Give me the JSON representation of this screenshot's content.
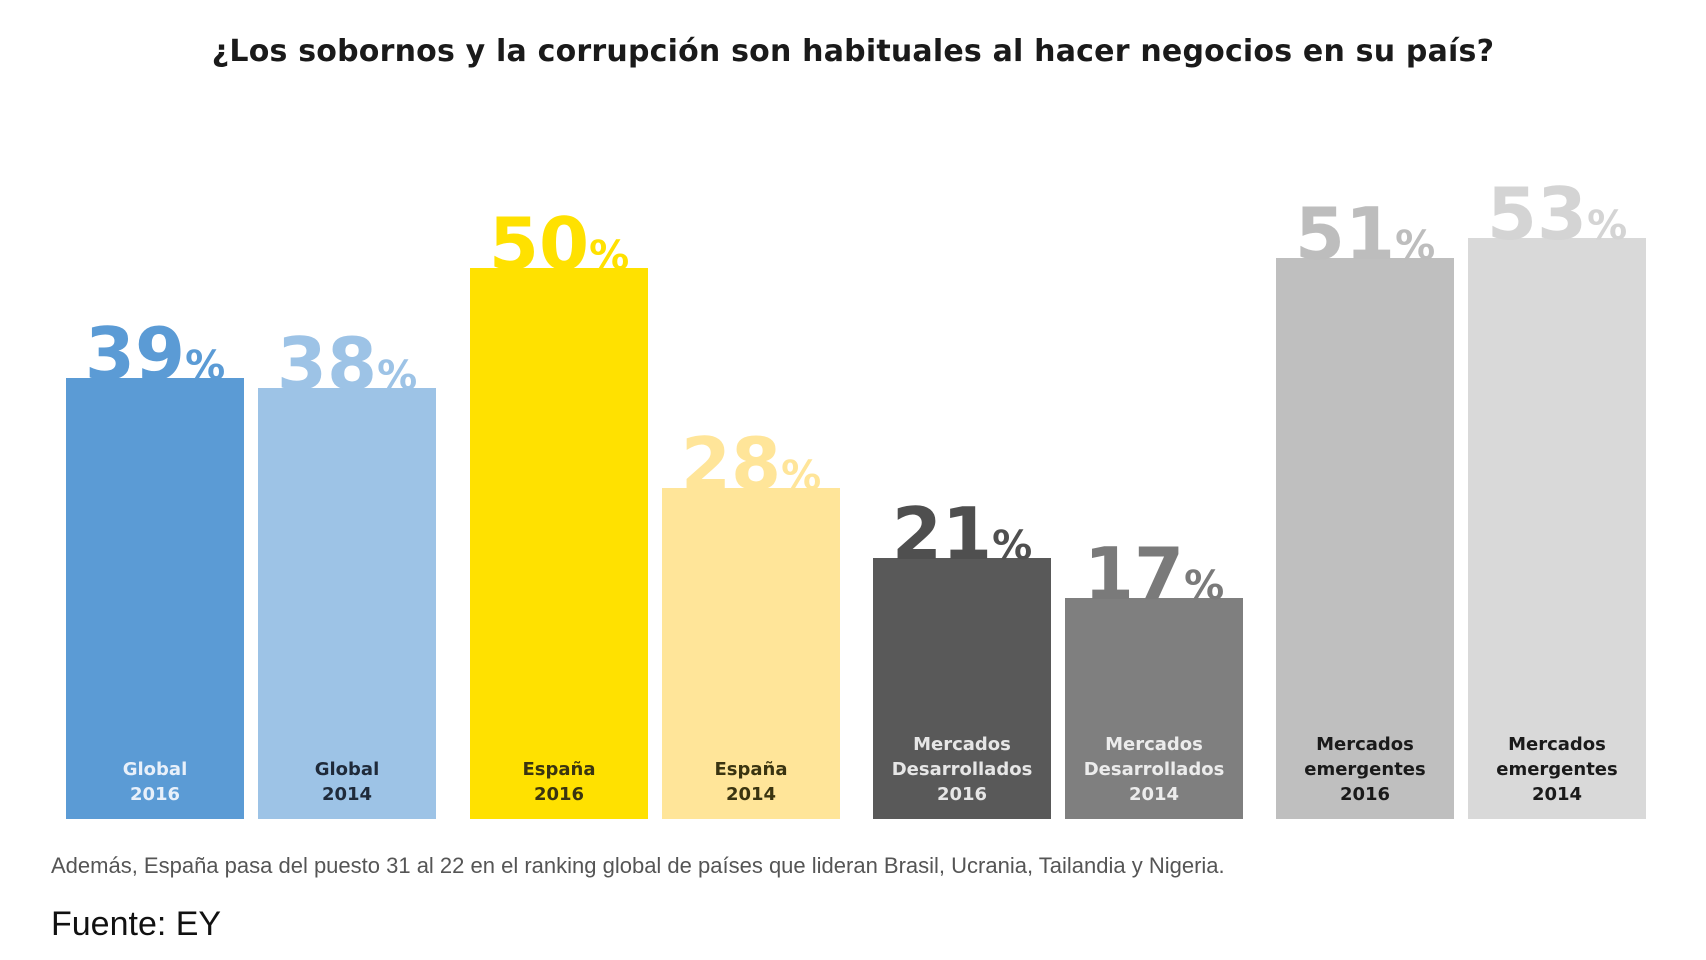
{
  "chart_data": {
    "type": "bar",
    "title": "¿Los sobornos y la corrupción son habituales al hacer negocios en su país?",
    "xlabel": "",
    "ylabel": "",
    "ylim": [
      0,
      100
    ],
    "grid": false,
    "legend": "none",
    "value_suffix": "%",
    "categories": [
      {
        "line1": "Global",
        "line2": "",
        "year": "2016",
        "value": 39,
        "display": "39",
        "color": "#5b9bd5",
        "value_color": "#5b9bd5",
        "label_color": "#e8f0fa"
      },
      {
        "line1": "Global",
        "line2": "",
        "year": "2014",
        "value": 38,
        "display": "38",
        "color": "#9dc3e6",
        "value_color": "#9dc3e6",
        "label_color": "#1f2a3a"
      },
      {
        "line1": "España",
        "line2": "",
        "year": "2016",
        "value": 50,
        "display": "50",
        "color": "#ffe100",
        "value_color": "#ffe100",
        "label_color": "#3a3410"
      },
      {
        "line1": "España",
        "line2": "",
        "year": "2014",
        "value": 28,
        "display": "28",
        "color": "#ffe599",
        "value_color": "#ffe599",
        "label_color": "#3a3410"
      },
      {
        "line1": "Mercados",
        "line2": "Desarrollados",
        "year": "2016",
        "value": 21,
        "display": "21",
        "color": "#595959",
        "value_color": "#4f4f4f",
        "label_color": "#e6e6e6"
      },
      {
        "line1": "Mercados",
        "line2": "Desarrollados",
        "year": "2014",
        "value": 17,
        "display": "17",
        "color": "#7f7f7f",
        "value_color": "#7a7a7a",
        "label_color": "#ececec"
      },
      {
        "line1": "Mercados",
        "line2": "emergentes",
        "year": "2016",
        "value": 51,
        "display": "51",
        "color": "#bfbfbf",
        "value_color": "#bdbdbd",
        "label_color": "#1a1a1a"
      },
      {
        "line1": "Mercados",
        "line2": "emergentes",
        "year": "2014",
        "value": 53,
        "display": "53",
        "color": "#d9d9d9",
        "value_color": "#d4d4d4",
        "label_color": "#1a1a1a"
      }
    ]
  },
  "note": "Además, España pasa del puesto 31 al 22 en el ranking global de países que lideran Brasil, Ucrania, Tailandia y Nigeria.",
  "source": "Fuente: EY"
}
